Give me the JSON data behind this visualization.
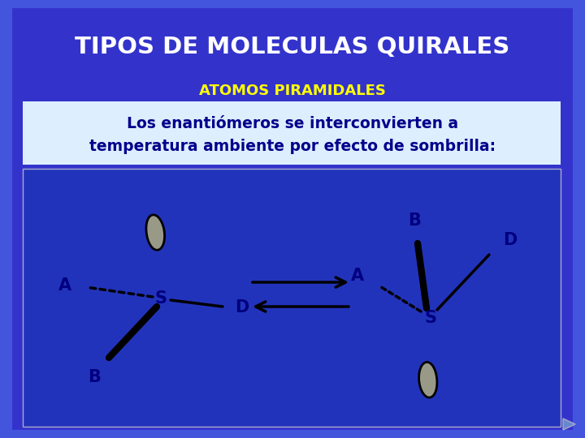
{
  "title": "TIPOS DE MOLECULAS QUIRALES",
  "subtitle": "ATOMOS PIRAMIDALES",
  "body_text": "Los enantiómeros se interconvierten a\ntemperatura ambiente por efecto de sombrilla:",
  "bg_color": "#3333cc",
  "outer_bg": "#4455dd",
  "title_color": "#ffffff",
  "subtitle_color": "#ffff00",
  "body_bg": "#ddeeff",
  "body_text_color": "#00008b",
  "diagram_bg": "#2233bb",
  "label_color": "#000080",
  "arrow_color": "#000000",
  "lone_pair_color": "#999988"
}
